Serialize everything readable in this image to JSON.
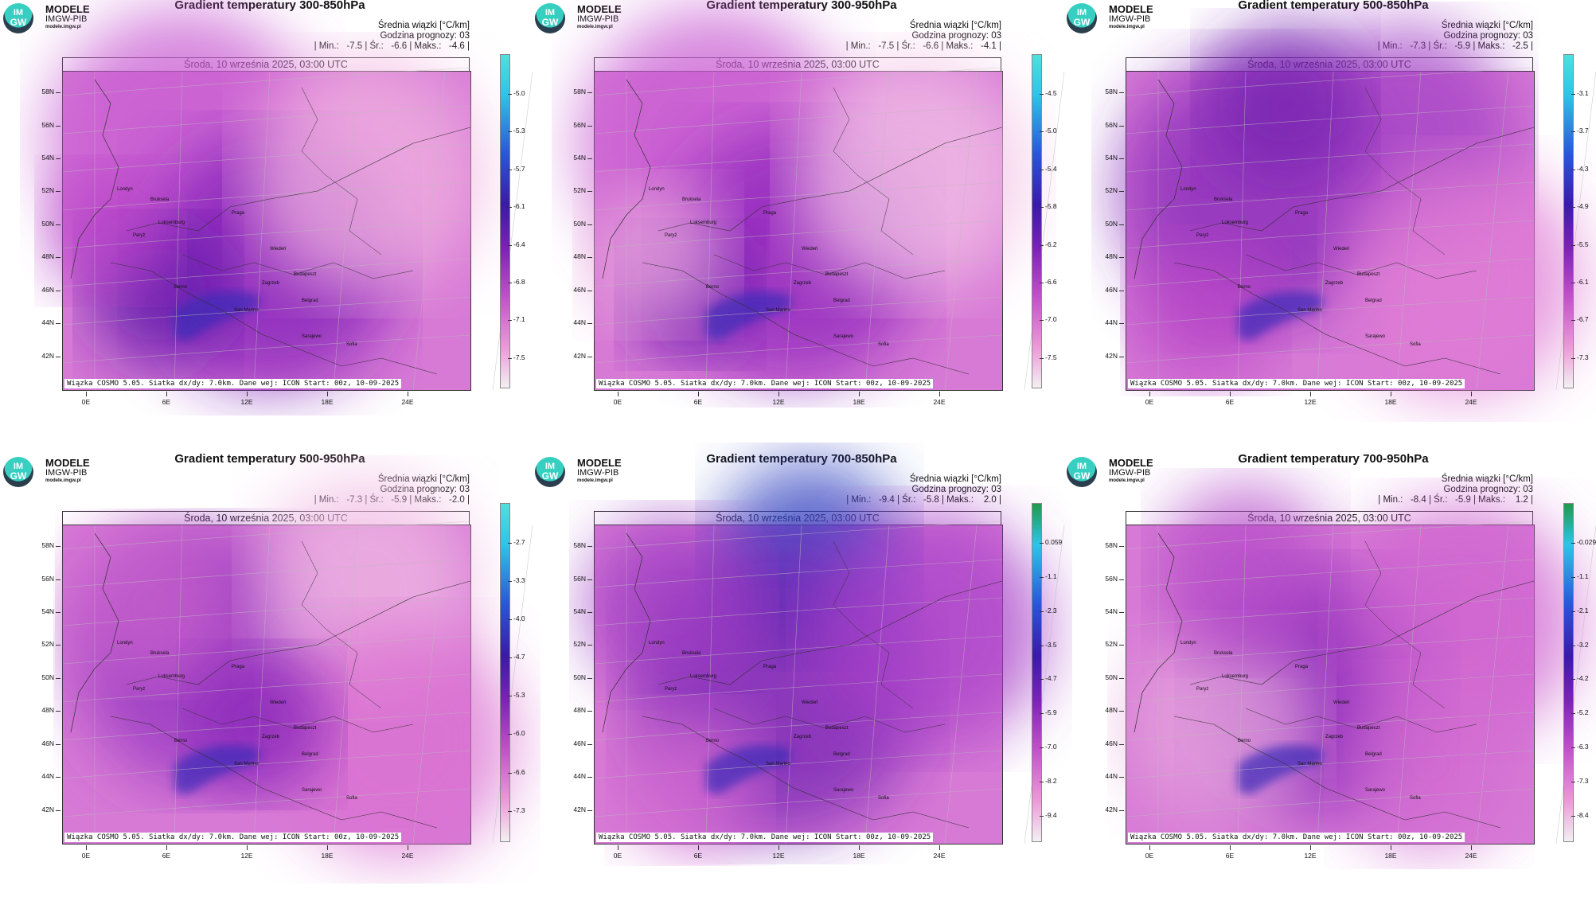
{
  "common": {
    "logo_line1": "MODELE",
    "logo_line2": "IMGW-PIB",
    "logo_url": "modele.imgw.pl",
    "logo_badge_top": "IM",
    "logo_badge_bottom": "GW",
    "units_label": "Średnia wiązki [°C/km]",
    "forecast_hour_label": "Godzina prognozy: 03",
    "date_bar": "Środa, 10 września 2025, 03:00 UTC",
    "footnote": "Wiązka COSMO 5.05. Siatka dx/dy: 7.0km. Dane wej: ICON Start: 00z, 10-09-2025",
    "lat_labels": [
      "58N",
      "56N",
      "54N",
      "52N",
      "50N",
      "48N",
      "46N",
      "44N",
      "42N"
    ],
    "lon_labels": [
      "0E",
      "6E",
      "12E",
      "18E",
      "24E"
    ],
    "cities": [
      "Londyn",
      "Bruksela",
      "Paryż",
      "Luksemburg",
      "Praga",
      "Wiedeń",
      "Budapeszt",
      "Berno",
      "Zagrzeb",
      "Belgrad",
      "San Marino",
      "Sarajewo",
      "Sofia"
    ]
  },
  "panels": [
    {
      "title": "Gradient temperatury 300-850hPa",
      "stats": "| Min.:   -7.5 | Śr.:   -6.6 | Maks.:   -4.6 |",
      "colorbar_ticks": [
        "-5.0",
        "-5.3",
        "-5.7",
        "-6.1",
        "-6.4",
        "-6.8",
        "-7.1",
        "-7.5"
      ],
      "colorbar_top": "#4fe0dc"
    },
    {
      "title": "Gradient temperatury 300-950hPa",
      "stats": "| Min.:   -7.5 | Śr.:   -6.6 | Maks.:   -4.1 |",
      "colorbar_ticks": [
        "-4.5",
        "-5.0",
        "-5.4",
        "-5.8",
        "-6.2",
        "-6.6",
        "-7.0",
        "-7.5"
      ],
      "colorbar_top": "#4fe0dc"
    },
    {
      "title": "Gradient temperatury 500-850hPa",
      "stats": "| Min.:   -7.3 | Śr.:   -5.9 | Maks.:   -2.5 |",
      "colorbar_ticks": [
        "-3.1",
        "-3.7",
        "-4.3",
        "-4.9",
        "-5.5",
        "-6.1",
        "-6.7",
        "-7.3"
      ],
      "colorbar_top": "#4fe0dc"
    },
    {
      "title": "Gradient temperatury 500-950hPa",
      "stats": "| Min.:   -7.3 | Śr.:   -5.9 | Maks.:   -2.0 |",
      "colorbar_ticks": [
        "-2.7",
        "-3.3",
        "-4.0",
        "-4.7",
        "-5.3",
        "-6.0",
        "-6.6",
        "-7.3"
      ],
      "colorbar_top": "#4fe0dc"
    },
    {
      "title": "Gradient temperatury 700-850hPa",
      "stats": "| Min.:   -9.4 | Śr.:   -5.8 | Maks.:    2.0 |",
      "colorbar_ticks": [
        "0.059",
        "-1.1",
        "-2.3",
        "-3.5",
        "-4.7",
        "-5.9",
        "-7.0",
        "-8.2",
        "-9.4"
      ],
      "colorbar_top": "#1f9a4c"
    },
    {
      "title": "Gradient temperatury 700-950hPa",
      "stats": "| Min.:   -8.4 | Śr.:   -5.9 | Maks.:    1.2 |",
      "colorbar_ticks": [
        "-0.029",
        "-1.1",
        "-2.1",
        "-3.2",
        "-4.2",
        "-5.2",
        "-6.3",
        "-7.3",
        "-8.4"
      ],
      "colorbar_top": "#1f9a4c"
    }
  ]
}
